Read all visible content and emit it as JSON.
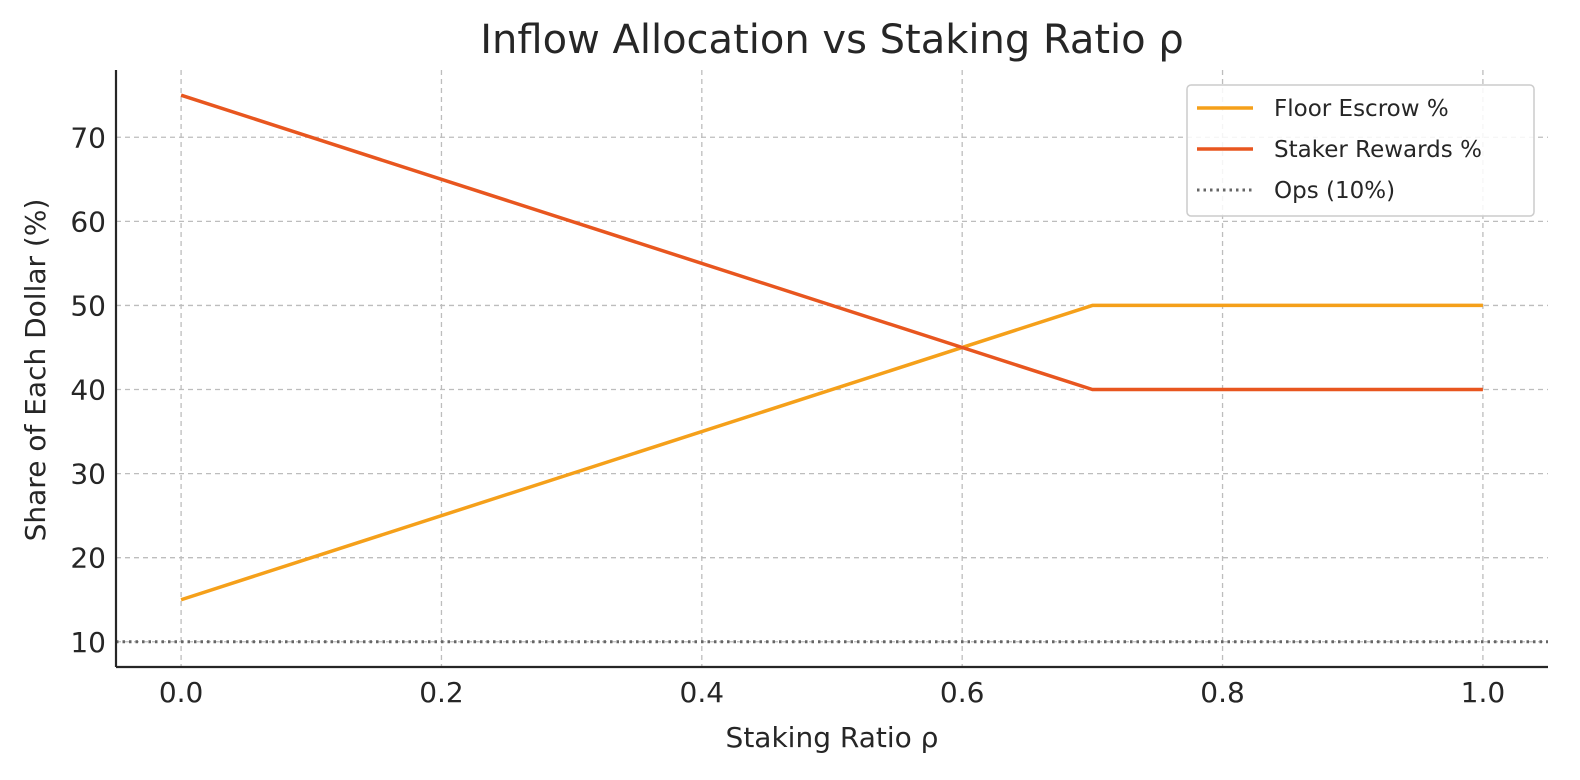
{
  "chart_data": {
    "type": "line",
    "title": "Inflow Allocation vs Staking Ratio ρ",
    "xlabel": "Staking Ratio ρ",
    "ylabel": "Share of Each Dollar (%)",
    "xlim": [
      -0.05,
      1.05
    ],
    "ylim": [
      7,
      78
    ],
    "x_ticks": [
      0.0,
      0.2,
      0.4,
      0.6,
      0.8,
      1.0
    ],
    "x_tick_labels": [
      "0.0",
      "0.2",
      "0.4",
      "0.6",
      "0.8",
      "1.0"
    ],
    "y_ticks": [
      10,
      20,
      30,
      40,
      50,
      60,
      70
    ],
    "y_tick_labels": [
      "10",
      "20",
      "30",
      "40",
      "50",
      "60",
      "70"
    ],
    "grid": true,
    "legend_position": "top-right",
    "series": [
      {
        "name": "Floor Escrow %",
        "color": "#f5a01a",
        "style": "solid",
        "x": [
          0.0,
          0.7,
          1.0
        ],
        "y": [
          15,
          50,
          50
        ]
      },
      {
        "name": "Staker Rewards %",
        "color": "#e8561f",
        "style": "solid",
        "x": [
          0.0,
          0.7,
          1.0
        ],
        "y": [
          75,
          40,
          40
        ]
      },
      {
        "name": "Ops (10%)",
        "color": "#666666",
        "style": "dotted",
        "type": "hline",
        "y": 10
      }
    ]
  }
}
